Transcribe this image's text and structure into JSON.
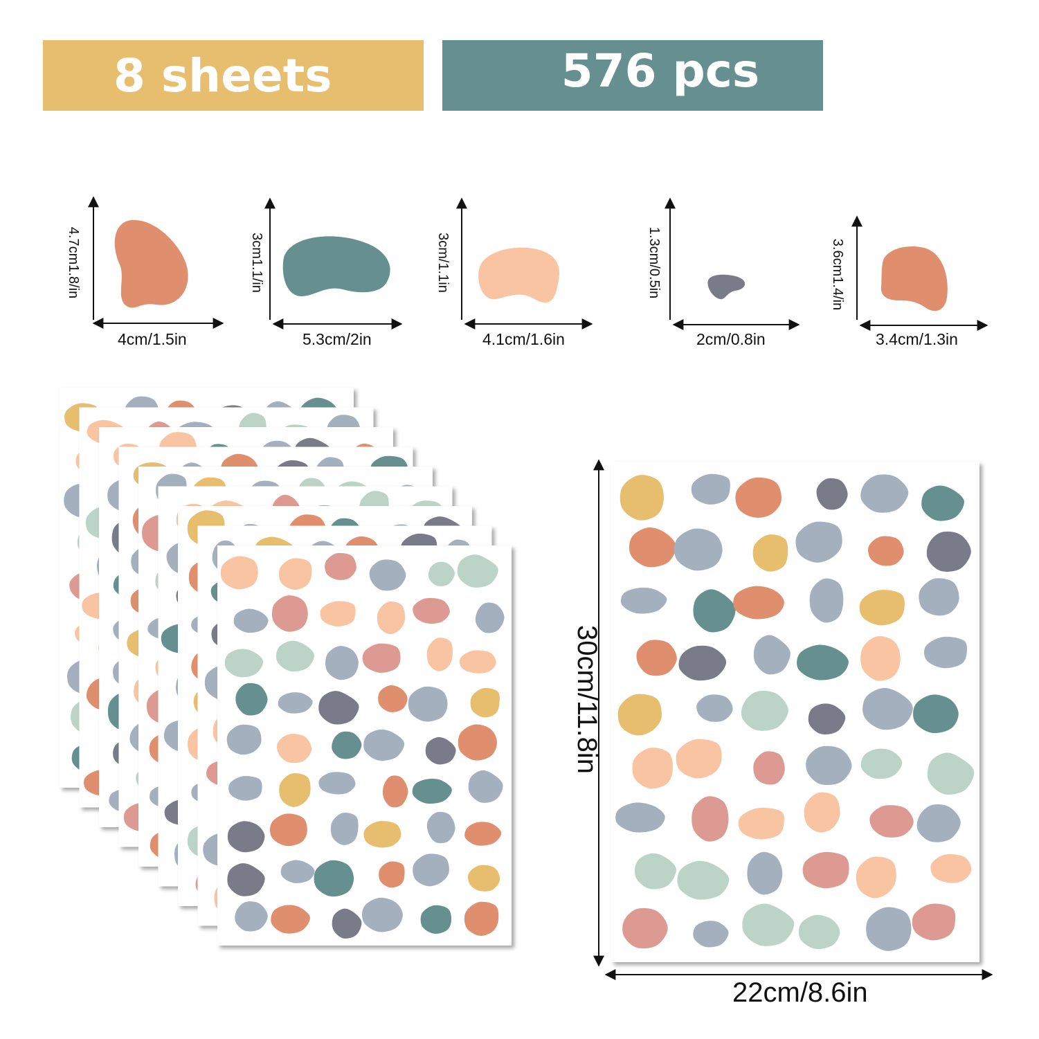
{
  "banners": {
    "sheets": "8 sheets",
    "pieces": "576 pcs"
  },
  "colors": {
    "mustard": "#e7bd6e",
    "teal": "#668f8f",
    "terracotta": "#e08f6e",
    "peach": "#f8c4a2",
    "slate": "#7a7b88",
    "sage": "#bcd4c8",
    "dusty_rose": "#dc9a92",
    "blue_gray": "#a5b0bf"
  },
  "shapes": [
    {
      "color": "terracotta",
      "height_label": "4.7cm1.8/in",
      "width_label": "4cm/1.5in"
    },
    {
      "color": "teal",
      "height_label": "3cm1.1/in",
      "width_label": "5.3cm/2in"
    },
    {
      "color": "peach",
      "height_label": "3cm/1.1in",
      "width_label": "4.1cm/1.6in"
    },
    {
      "color": "slate",
      "height_label": "1.3cm/0.5in",
      "width_label": "2cm/0.8in"
    },
    {
      "color": "terracotta",
      "height_label": "3.6cm1.4/in",
      "width_label": "3.4cm/1.3in"
    }
  ],
  "sheet": {
    "height_label": "30cm/11.8in",
    "width_label": "22cm/8.6in"
  },
  "stack": {
    "sheet_count": 8
  }
}
